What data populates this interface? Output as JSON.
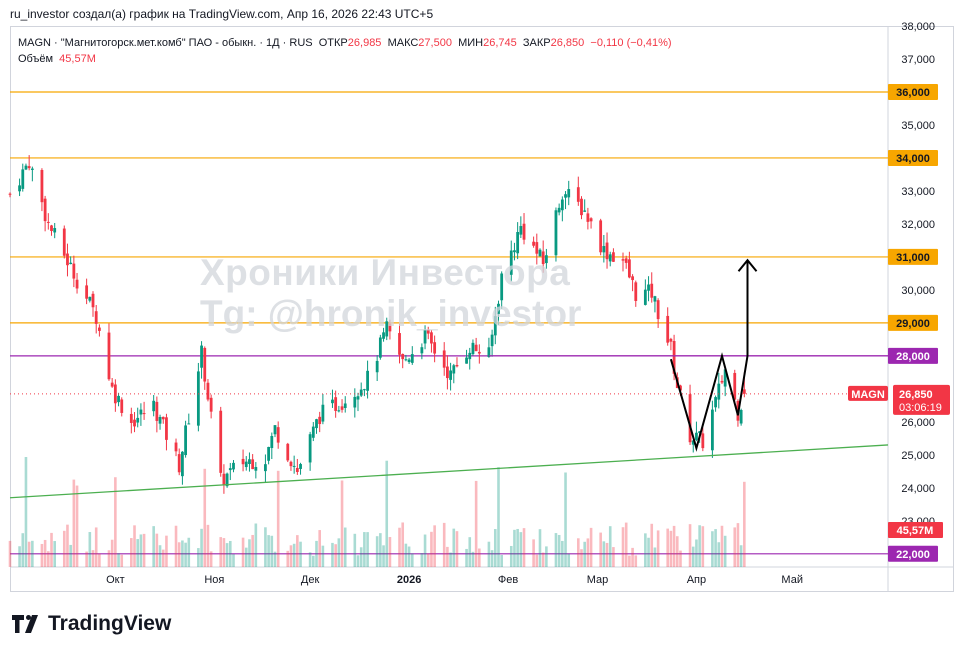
{
  "header": {
    "caption": "ru_investor создал(а) график на TradingView.com, Апр 16, 2026 22:43 UTC+5"
  },
  "legend": {
    "ticker": "MAGN · \"Магнитогорск.мет.комб\" ПАО - обыкн. · 1Д · RUS",
    "open_label": "ОТКР",
    "open": "26,985",
    "high_label": "МАКС",
    "high": "27,500",
    "low_label": "МИН",
    "low": "26,745",
    "close_label": "ЗАКР",
    "close": "26,850",
    "change": "−0,110 (−0,41%)",
    "volume_label": "Объём",
    "volume": "45,57M"
  },
  "watermark": {
    "line1": "Хроники Инвестора",
    "line2": "Tg: @hronik_investor"
  },
  "footer": {
    "brand": "TradingView"
  },
  "colors": {
    "up": "#089981",
    "down": "#f23645",
    "level": "#f7a600",
    "support": "#9c27b0",
    "trend": "#4caf50"
  },
  "chart_data": {
    "type": "candlestick",
    "interval": "1D",
    "symbol": "MAGN",
    "y_ticks": [
      "38,000",
      "37,000",
      "36,000",
      "35,000",
      "34,000",
      "33,000",
      "32,000",
      "31,000",
      "30,000",
      "29,000",
      "28,000",
      "27,000",
      "26,000",
      "25,000",
      "24,000",
      "23,000",
      "22,000"
    ],
    "x_ticks": [
      "Окт",
      "Ноя",
      "Дек",
      "2026",
      "Фев",
      "Мар",
      "Апр",
      "Май"
    ],
    "ylim": [
      21.6,
      38.0
    ],
    "horizontal_levels": [
      {
        "value": 36.0,
        "label": "36,000",
        "color": "level"
      },
      {
        "value": 34.0,
        "label": "34,000",
        "color": "level"
      },
      {
        "value": 31.0,
        "label": "31,000",
        "color": "level"
      },
      {
        "value": 29.0,
        "label": "29,000",
        "color": "level"
      },
      {
        "value": 28.0,
        "label": "28,000",
        "color": "support"
      },
      {
        "value": 22.0,
        "label": "22,000",
        "color": "support"
      }
    ],
    "last_price": {
      "symbol": "MAGN",
      "value": 26.85,
      "label": "26,850",
      "countdown": "03:06:19"
    },
    "volume_label": "45,57M",
    "anchors": [
      {
        "date": "2025-08-29",
        "close": 32.9
      },
      {
        "date": "2025-09-04",
        "close": 33.9
      },
      {
        "date": "2025-09-10",
        "close": 32.0
      },
      {
        "date": "2025-09-18",
        "close": 30.5
      },
      {
        "date": "2025-09-25",
        "close": 29.2
      },
      {
        "date": "2025-09-30",
        "close": 27.0
      },
      {
        "date": "2025-10-06",
        "close": 26.0
      },
      {
        "date": "2025-10-13",
        "close": 26.5
      },
      {
        "date": "2025-10-21",
        "close": 24.7
      },
      {
        "date": "2025-10-28",
        "close": 28.1
      },
      {
        "date": "2025-11-03",
        "close": 24.2
      },
      {
        "date": "2025-11-10",
        "close": 24.8
      },
      {
        "date": "2025-11-17",
        "close": 24.9
      },
      {
        "date": "2025-11-20",
        "close": 25.8
      },
      {
        "date": "2025-11-27",
        "close": 24.5
      },
      {
        "date": "2025-12-04",
        "close": 26.2
      },
      {
        "date": "2025-12-12",
        "close": 26.7
      },
      {
        "date": "2025-12-19",
        "close": 27.3
      },
      {
        "date": "2025-12-25",
        "close": 28.8
      },
      {
        "date": "2025-12-30",
        "close": 27.8
      },
      {
        "date": "2026-01-06",
        "close": 28.6
      },
      {
        "date": "2026-01-14",
        "close": 27.4
      },
      {
        "date": "2026-01-20",
        "close": 28.3
      },
      {
        "date": "2026-01-26",
        "close": 28.0
      },
      {
        "date": "2026-01-30",
        "close": 30.4
      },
      {
        "date": "2026-02-05",
        "close": 31.9
      },
      {
        "date": "2026-02-12",
        "close": 30.8
      },
      {
        "date": "2026-02-18",
        "close": 33.0
      },
      {
        "date": "2026-02-25",
        "close": 32.4
      },
      {
        "date": "2026-03-03",
        "close": 31.2
      },
      {
        "date": "2026-03-09",
        "close": 30.9
      },
      {
        "date": "2026-03-13",
        "close": 29.9
      },
      {
        "date": "2026-03-18",
        "close": 29.9
      },
      {
        "date": "2026-03-24",
        "close": 28.2
      },
      {
        "date": "2026-03-26",
        "close": 27.1
      },
      {
        "date": "2026-03-30",
        "close": 25.6
      },
      {
        "date": "2026-04-03",
        "close": 25.4
      },
      {
        "date": "2026-04-07",
        "close": 26.6
      },
      {
        "date": "2026-04-10",
        "close": 27.6
      },
      {
        "date": "2026-04-14",
        "close": 26.3
      },
      {
        "date": "2026-04-16",
        "close": 26.85
      }
    ],
    "annotations": [
      {
        "type": "trendline",
        "from": {
          "date": "2025-08-29",
          "value": 23.7
        },
        "to": {
          "date": "2026-05-31",
          "value": 25.3
        },
        "color": "trend"
      },
      {
        "type": "segment",
        "from": {
          "date": "2026-01-26",
          "value": 28.0
        },
        "to": {
          "date": "2026-05-31",
          "value": 28.0
        },
        "color": "support"
      },
      {
        "type": "path",
        "points": [
          {
            "date": "2026-03-24",
            "value": 27.9
          },
          {
            "date": "2026-04-01",
            "value": 25.2
          },
          {
            "date": "2026-04-09",
            "value": 28.0
          },
          {
            "date": "2026-04-14",
            "value": 26.2
          },
          {
            "date": "2026-04-17",
            "value": 28.0
          },
          {
            "date": "2026-04-17",
            "value": 30.9
          }
        ],
        "arrow": true
      }
    ]
  }
}
